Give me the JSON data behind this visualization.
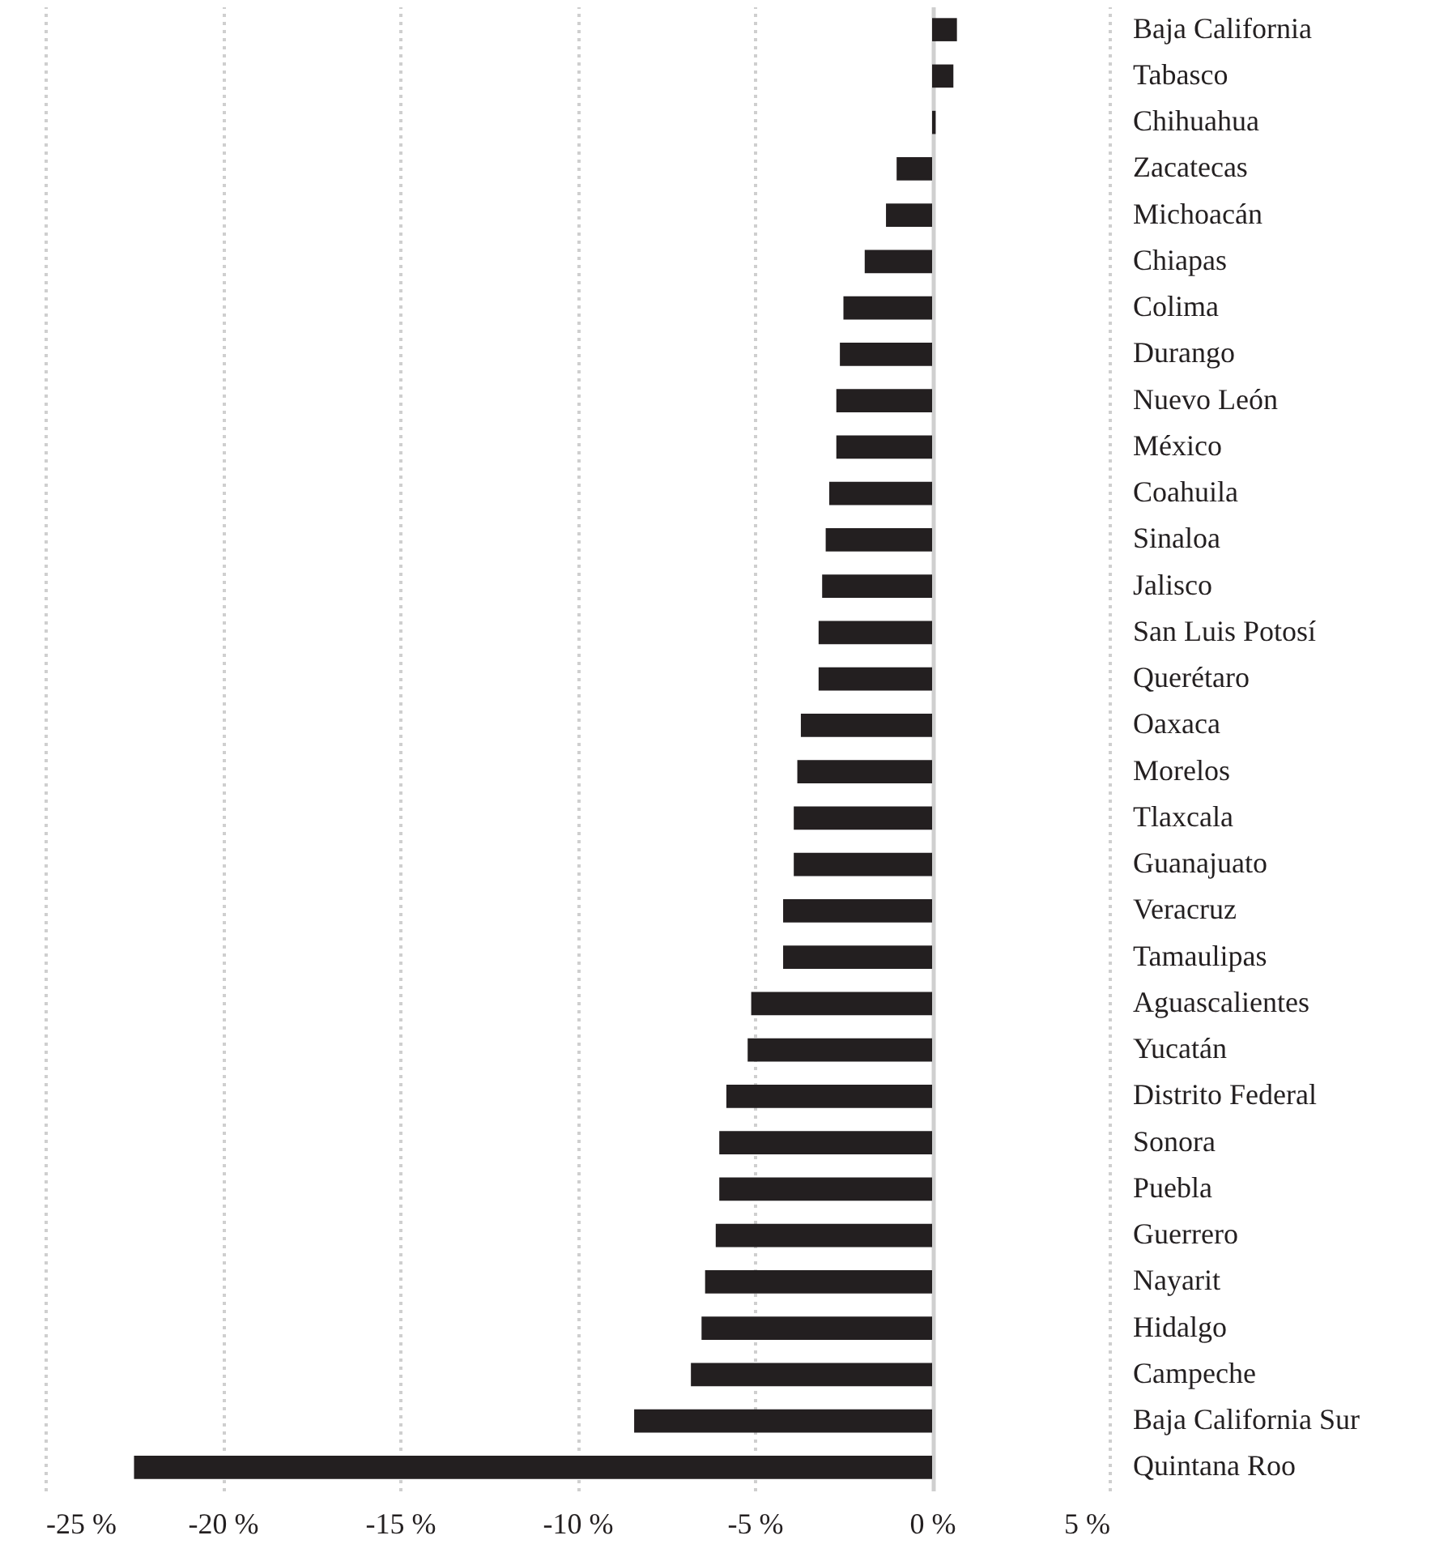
{
  "chart_data": {
    "type": "bar",
    "orientation": "horizontal",
    "categories": [
      "Baja California",
      "Tabasco",
      "Chihuahua",
      "Zacatecas",
      "Michoacán",
      "Chiapas",
      "Colima",
      "Durango",
      "Nuevo León",
      "México",
      "Coahuila",
      "Sinaloa",
      "Jalisco",
      "San Luis Potosí",
      "Querétaro",
      "Oaxaca",
      "Morelos",
      "Tlaxcala",
      "Guanajuato",
      "Veracruz",
      "Tamaulipas",
      "Aguascalientes",
      "Yucatán",
      "Distrito Federal",
      "Sonora",
      "Puebla",
      "Guerrero",
      "Nayarit",
      "Hidalgo",
      "Campeche",
      "Baja California Sur",
      "Quintana Roo"
    ],
    "values": [
      0.7,
      0.6,
      0.1,
      -1.0,
      -1.3,
      -1.9,
      -2.5,
      -2.6,
      -2.7,
      -2.7,
      -2.9,
      -3.0,
      -3.1,
      -3.2,
      -3.2,
      -3.7,
      -3.8,
      -3.9,
      -3.9,
      -4.2,
      -4.2,
      -5.1,
      -5.2,
      -5.8,
      -6.0,
      -6.0,
      -6.1,
      -6.4,
      -6.5,
      -6.8,
      -8.4,
      -22.5
    ],
    "color": "#231f20",
    "xlim": [
      -25,
      5
    ],
    "xticks": [
      {
        "value": -25,
        "label": "-25 %"
      },
      {
        "value": -20,
        "label": "-20 %"
      },
      {
        "value": -15,
        "label": "-15 %"
      },
      {
        "value": -10,
        "label": "-10 %"
      },
      {
        "value": -5,
        "label": "-5 %"
      },
      {
        "value": 0,
        "label": "0 %"
      },
      {
        "value": 5,
        "label": "5 %"
      }
    ],
    "grid": "x"
  }
}
